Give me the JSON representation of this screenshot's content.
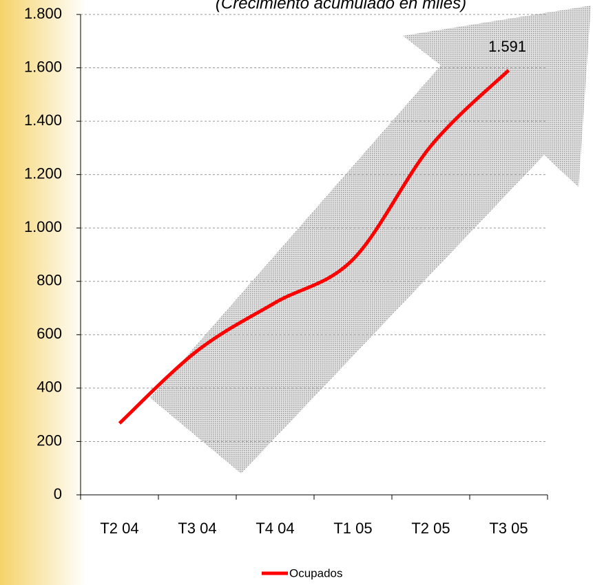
{
  "chart_data": {
    "type": "line",
    "title": "(Crecimiento acumulado en miles)",
    "categories": [
      "T2 04",
      "T3 04",
      "T4 04",
      "T1 05",
      "T2 05",
      "T3 05"
    ],
    "series": [
      {
        "name": "Ocupados",
        "color": "#ff0000",
        "values": [
          268,
          540,
          720,
          882,
          1307,
          1591
        ],
        "value_labels": [
          null,
          null,
          null,
          null,
          null,
          "1.591"
        ]
      }
    ],
    "ylim": [
      0,
      1800
    ],
    "yticks": [
      0,
      200,
      400,
      600,
      800,
      {
        "value": 1000,
        "label": "1.000"
      },
      {
        "value": 1200,
        "label": "1.200"
      },
      {
        "value": 1400,
        "label": "1.400"
      },
      {
        "value": 1600,
        "label": "1.600"
      },
      {
        "value": 1800,
        "label": "1.800"
      }
    ],
    "grid": true,
    "legend": "bottom"
  }
}
